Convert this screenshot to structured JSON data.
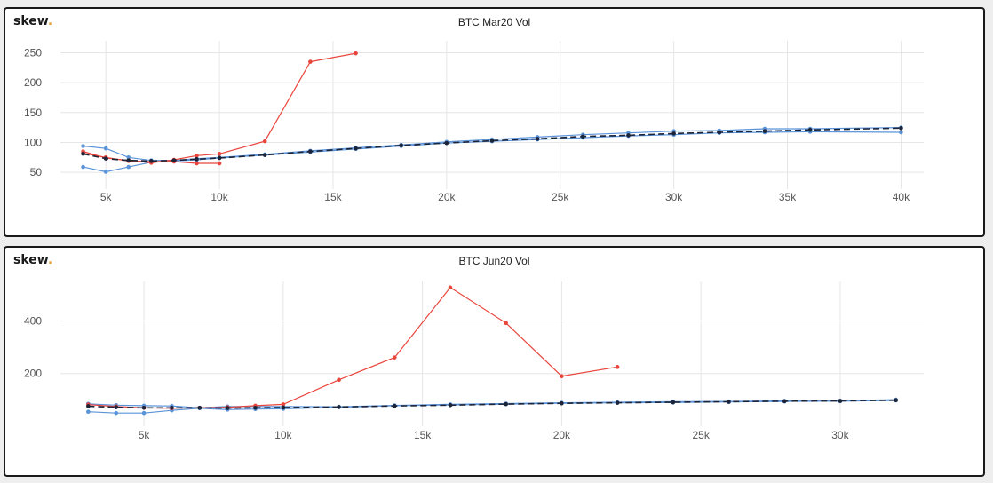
{
  "brand": {
    "logo_text": "skew",
    "logo_dot": ".",
    "dot_color": "#e8a33d"
  },
  "colors": {
    "market": "#e8453c",
    "bid_ask": "#5b93d9",
    "mid": "#1c2438",
    "grid": "#e6e6e6"
  },
  "chart_data": [
    {
      "type": "line",
      "title": "BTC Mar20 Vol",
      "xlabel": "",
      "ylabel": "",
      "xlim": [
        3000,
        41000
      ],
      "ylim": [
        22,
        270
      ],
      "xticks": [
        5000,
        10000,
        15000,
        20000,
        25000,
        30000,
        35000,
        40000
      ],
      "xtick_labels": [
        "5k",
        "10k",
        "15k",
        "20k",
        "25k",
        "30k",
        "35k",
        "40k"
      ],
      "yticks": [
        50,
        100,
        150,
        200,
        250
      ],
      "ytick_labels": [
        "50",
        "100",
        "150",
        "200",
        "250"
      ],
      "grid": true,
      "series": [
        {
          "role": "bid",
          "color": "#5b93d9",
          "dashed": false,
          "dots": true,
          "x": [
            4000,
            5000,
            6000,
            7000,
            8000,
            9000,
            10000,
            12000,
            14000,
            16000,
            18000,
            20000,
            22000,
            24000,
            26000,
            28000,
            30000,
            32000,
            34000,
            36000,
            40000
          ],
          "y": [
            59,
            51,
            59,
            67,
            69,
            71,
            74,
            79,
            84,
            89,
            94,
            99,
            102,
            105,
            108,
            111,
            113,
            116,
            117,
            118,
            117
          ]
        },
        {
          "role": "ask",
          "color": "#5b93d9",
          "dashed": false,
          "dots": true,
          "x": [
            4000,
            5000,
            6000,
            7000,
            8000,
            9000,
            10000,
            12000,
            14000,
            16000,
            18000,
            20000,
            22000,
            24000,
            26000,
            28000,
            30000,
            32000,
            34000,
            36000,
            40000
          ],
          "y": [
            94,
            90,
            75,
            70,
            70,
            73,
            75,
            80,
            86,
            91,
            96,
            101,
            105,
            109,
            113,
            116,
            119,
            120,
            123,
            123,
            125
          ]
        },
        {
          "role": "market",
          "color": "#e8453c",
          "dashed": false,
          "dots": true,
          "x": [
            4000,
            5000,
            6000,
            7000,
            8000,
            9000,
            10000,
            12000,
            14000,
            16000
          ],
          "y": [
            85,
            74,
            70,
            66,
            71,
            78,
            81,
            102,
            235,
            249
          ]
        },
        {
          "role": "market",
          "color": "#e8453c",
          "dashed": false,
          "dots": true,
          "x": [
            4000,
            5000,
            6000,
            7000,
            8000,
            9000,
            10000
          ],
          "y": [
            82,
            75,
            69,
            68,
            68,
            65,
            65
          ]
        },
        {
          "role": "mid",
          "color": "#1c2438",
          "dashed": true,
          "dots": true,
          "x": [
            4000,
            5000,
            6000,
            7000,
            8000,
            9000,
            10000,
            12000,
            14000,
            16000,
            18000,
            20000,
            22000,
            24000,
            26000,
            28000,
            30000,
            32000,
            34000,
            36000,
            40000
          ],
          "y": [
            81,
            73,
            70,
            69,
            70,
            72,
            74,
            79,
            85,
            90,
            95,
            99,
            103,
            106,
            110,
            112,
            115,
            117,
            119,
            121,
            124
          ]
        }
      ]
    },
    {
      "type": "line",
      "title": "BTC Jun20 Vol",
      "xlabel": "",
      "ylabel": "",
      "xlim": [
        2000,
        33000
      ],
      "ylim": [
        0,
        550
      ],
      "xticks": [
        5000,
        10000,
        15000,
        20000,
        25000,
        30000
      ],
      "xtick_labels": [
        "5k",
        "10k",
        "15k",
        "20k",
        "25k",
        "30k"
      ],
      "yticks": [
        200,
        400
      ],
      "ytick_labels": [
        "200",
        "400"
      ],
      "grid": true,
      "series": [
        {
          "role": "bid",
          "color": "#5b93d9",
          "dashed": false,
          "dots": true,
          "x": [
            3000,
            4000,
            5000,
            6000,
            7000,
            8000,
            9000,
            10000,
            12000,
            14000,
            16000,
            18000,
            20000,
            22000,
            24000,
            26000,
            28000,
            30000,
            32000
          ],
          "y": [
            55,
            50,
            50,
            60,
            68,
            63,
            65,
            66,
            72,
            78,
            81,
            84,
            87,
            89,
            90,
            92,
            94,
            95,
            98
          ]
        },
        {
          "role": "ask",
          "color": "#5b93d9",
          "dashed": false,
          "dots": true,
          "x": [
            3000,
            4000,
            5000,
            6000,
            7000,
            8000,
            9000,
            10000,
            12000,
            14000,
            16000,
            18000,
            20000,
            22000,
            24000,
            26000,
            28000,
            30000,
            32000
          ],
          "y": [
            85,
            80,
            78,
            77,
            70,
            75,
            75,
            75,
            74,
            79,
            83,
            86,
            89,
            91,
            93,
            94,
            96,
            97,
            101
          ]
        },
        {
          "role": "market",
          "color": "#e8453c",
          "dashed": false,
          "dots": true,
          "x": [
            3000,
            4000,
            5000,
            6000,
            7000,
            8000,
            9000,
            10000,
            12000,
            14000,
            16000,
            18000,
            20000,
            22000
          ],
          "y": [
            82,
            75,
            70,
            68,
            70,
            72,
            78,
            83,
            176,
            261,
            527,
            392,
            190,
            225
          ]
        },
        {
          "role": "mid",
          "color": "#1c2438",
          "dashed": true,
          "dots": true,
          "x": [
            3000,
            4000,
            5000,
            6000,
            7000,
            8000,
            9000,
            10000,
            12000,
            14000,
            16000,
            18000,
            20000,
            22000,
            24000,
            26000,
            28000,
            30000,
            32000
          ],
          "y": [
            76,
            72,
            70,
            70,
            70,
            69,
            70,
            71,
            73,
            77,
            80,
            84,
            87,
            89,
            91,
            93,
            95,
            96,
            99
          ]
        }
      ]
    }
  ]
}
